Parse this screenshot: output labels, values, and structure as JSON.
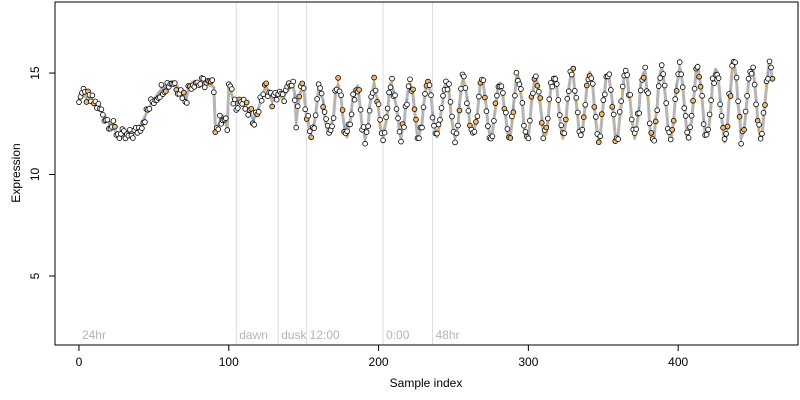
{
  "chart_data": {
    "type": "scatter",
    "title": "",
    "xlabel": "Sample index",
    "ylabel": "Expression",
    "xlim": [
      -16,
      480
    ],
    "ylim": [
      1.6,
      18.5
    ],
    "x_ticks": [
      0,
      100,
      200,
      300,
      400
    ],
    "y_ticks": [
      5,
      10,
      15
    ],
    "grid": false,
    "annotations": [
      {
        "label": "24hr",
        "x": 0
      },
      {
        "label": "dawn",
        "x": 105
      },
      {
        "label": "dusk",
        "x": 133
      },
      {
        "label": "12:00",
        "x": 152
      },
      {
        "label": "0:00",
        "x": 203
      },
      {
        "label": "48hr",
        "x": 236
      }
    ],
    "colors": {
      "fitted_line": "#b5b5b5",
      "segment_up": "#e8a33d",
      "segment_down": "#7b9fd6",
      "point_stroke": "#000000"
    },
    "series": [
      {
        "values": [
          13.8,
          13.95,
          14.0,
          13.9,
          13.85,
          13.8,
          13.75,
          13.7,
          13.65,
          13.6,
          13.55,
          13.5,
          13.4,
          13.3,
          13.2,
          13.1,
          13.0,
          12.9,
          12.8,
          12.7,
          12.6,
          12.5,
          12.4,
          12.3,
          12.2,
          12.1,
          12.05,
          12.0,
          11.95,
          11.9,
          11.85,
          11.8,
          11.8,
          11.85,
          11.9,
          11.95,
          12.0,
          12.05,
          12.1,
          12.2,
          12.3,
          12.4,
          12.55,
          12.7,
          12.85,
          13.0,
          13.15,
          13.3,
          13.45,
          13.6,
          13.7,
          13.8,
          13.9,
          14.0,
          14.1,
          14.2,
          14.3,
          14.35,
          14.4,
          14.45,
          14.5,
          14.55,
          14.6,
          14.55,
          14.5,
          14.4,
          14.3,
          14.2,
          14.1,
          14.0,
          13.9,
          13.8,
          13.85,
          14.2,
          14.4,
          14.5,
          14.55,
          14.6,
          14.6,
          14.55,
          14.5,
          14.5,
          14.45,
          14.5,
          14.55,
          14.5,
          14.45,
          14.4,
          14.4,
          14.35,
          14.3,
          12.4,
          12.3,
          12.4,
          12.6,
          12.8,
          12.9,
          12.7,
          12.5,
          12.3,
          14.4,
          14.2,
          13.9,
          13.7,
          13.6,
          13.5,
          13.6,
          13.7,
          13.6,
          13.5,
          13.4,
          13.3,
          13.2,
          13.1,
          13.0,
          12.9,
          12.8,
          12.8,
          12.9,
          13.1,
          13.3,
          13.5,
          13.8,
          14.0,
          14.2,
          14.3,
          14.2,
          14.0,
          13.8,
          13.6,
          13.7,
          13.8,
          13.9,
          14.0,
          13.9,
          13.8,
          13.7,
          13.9,
          14.0,
          14.1,
          14.2,
          14.3,
          14.4,
          14.3,
          14.0
        ],
        "note_x_start": 0,
        "note_x_step": 1
      }
    ]
  }
}
